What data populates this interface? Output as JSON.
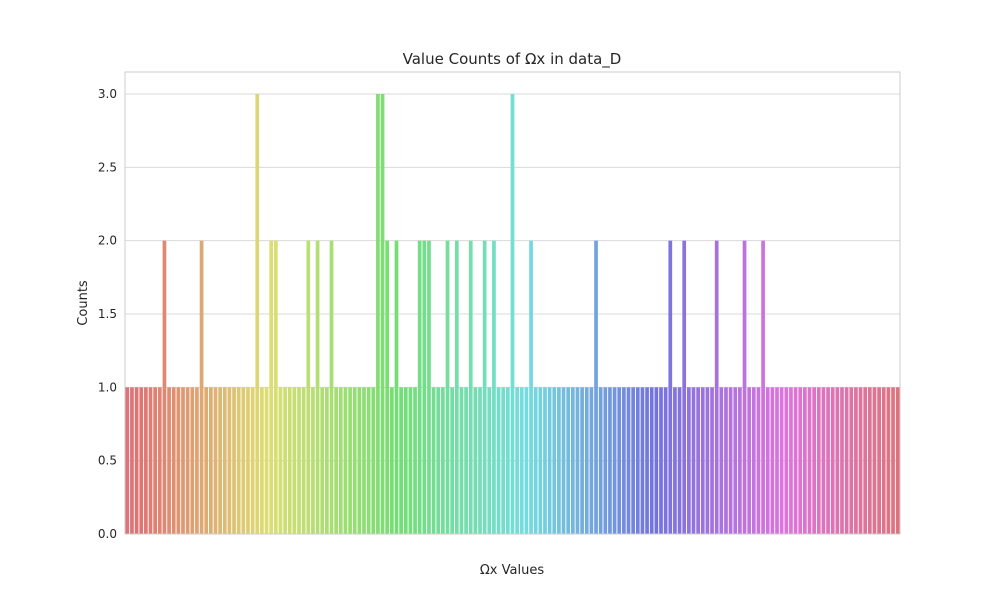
{
  "chart_data": {
    "type": "bar",
    "title": "Value Counts of Ωx in data_D",
    "xlabel": "Ωx Values",
    "ylabel": "Counts",
    "ylim": [
      0,
      3.15
    ],
    "yticks": [
      "0.0",
      "0.5",
      "1.0",
      "1.5",
      "2.0",
      "2.5",
      "3.0"
    ],
    "grid": "horizontal",
    "values": [
      1,
      1,
      1,
      1,
      1,
      1,
      1,
      1,
      2,
      1,
      1,
      1,
      1,
      1,
      1,
      1,
      2,
      1,
      1,
      1,
      1,
      1,
      1,
      1,
      1,
      1,
      1,
      1,
      3,
      1,
      1,
      2,
      2,
      1,
      1,
      1,
      1,
      1,
      1,
      2,
      1,
      2,
      1,
      1,
      2,
      1,
      1,
      1,
      1,
      1,
      1,
      1,
      1,
      1,
      3,
      3,
      2,
      1,
      2,
      1,
      1,
      1,
      1,
      2,
      2,
      2,
      1,
      1,
      1,
      2,
      1,
      2,
      1,
      1,
      2,
      1,
      1,
      2,
      1,
      2,
      1,
      1,
      1,
      3,
      1,
      1,
      1,
      2,
      1,
      1,
      1,
      1,
      1,
      1,
      1,
      1,
      1,
      1,
      1,
      1,
      1,
      2,
      1,
      1,
      1,
      1,
      1,
      1,
      1,
      1,
      1,
      1,
      1,
      1,
      1,
      1,
      1,
      2,
      1,
      1,
      2,
      1,
      1,
      1,
      1,
      1,
      1,
      2,
      1,
      1,
      1,
      1,
      1,
      2,
      1,
      1,
      1,
      2,
      1,
      1,
      1,
      1,
      1,
      1,
      1,
      1,
      1,
      1,
      1,
      1,
      1,
      1,
      1,
      1,
      1,
      1,
      1,
      1,
      1,
      1,
      1,
      1,
      1,
      1,
      1,
      1,
      1
    ]
  }
}
